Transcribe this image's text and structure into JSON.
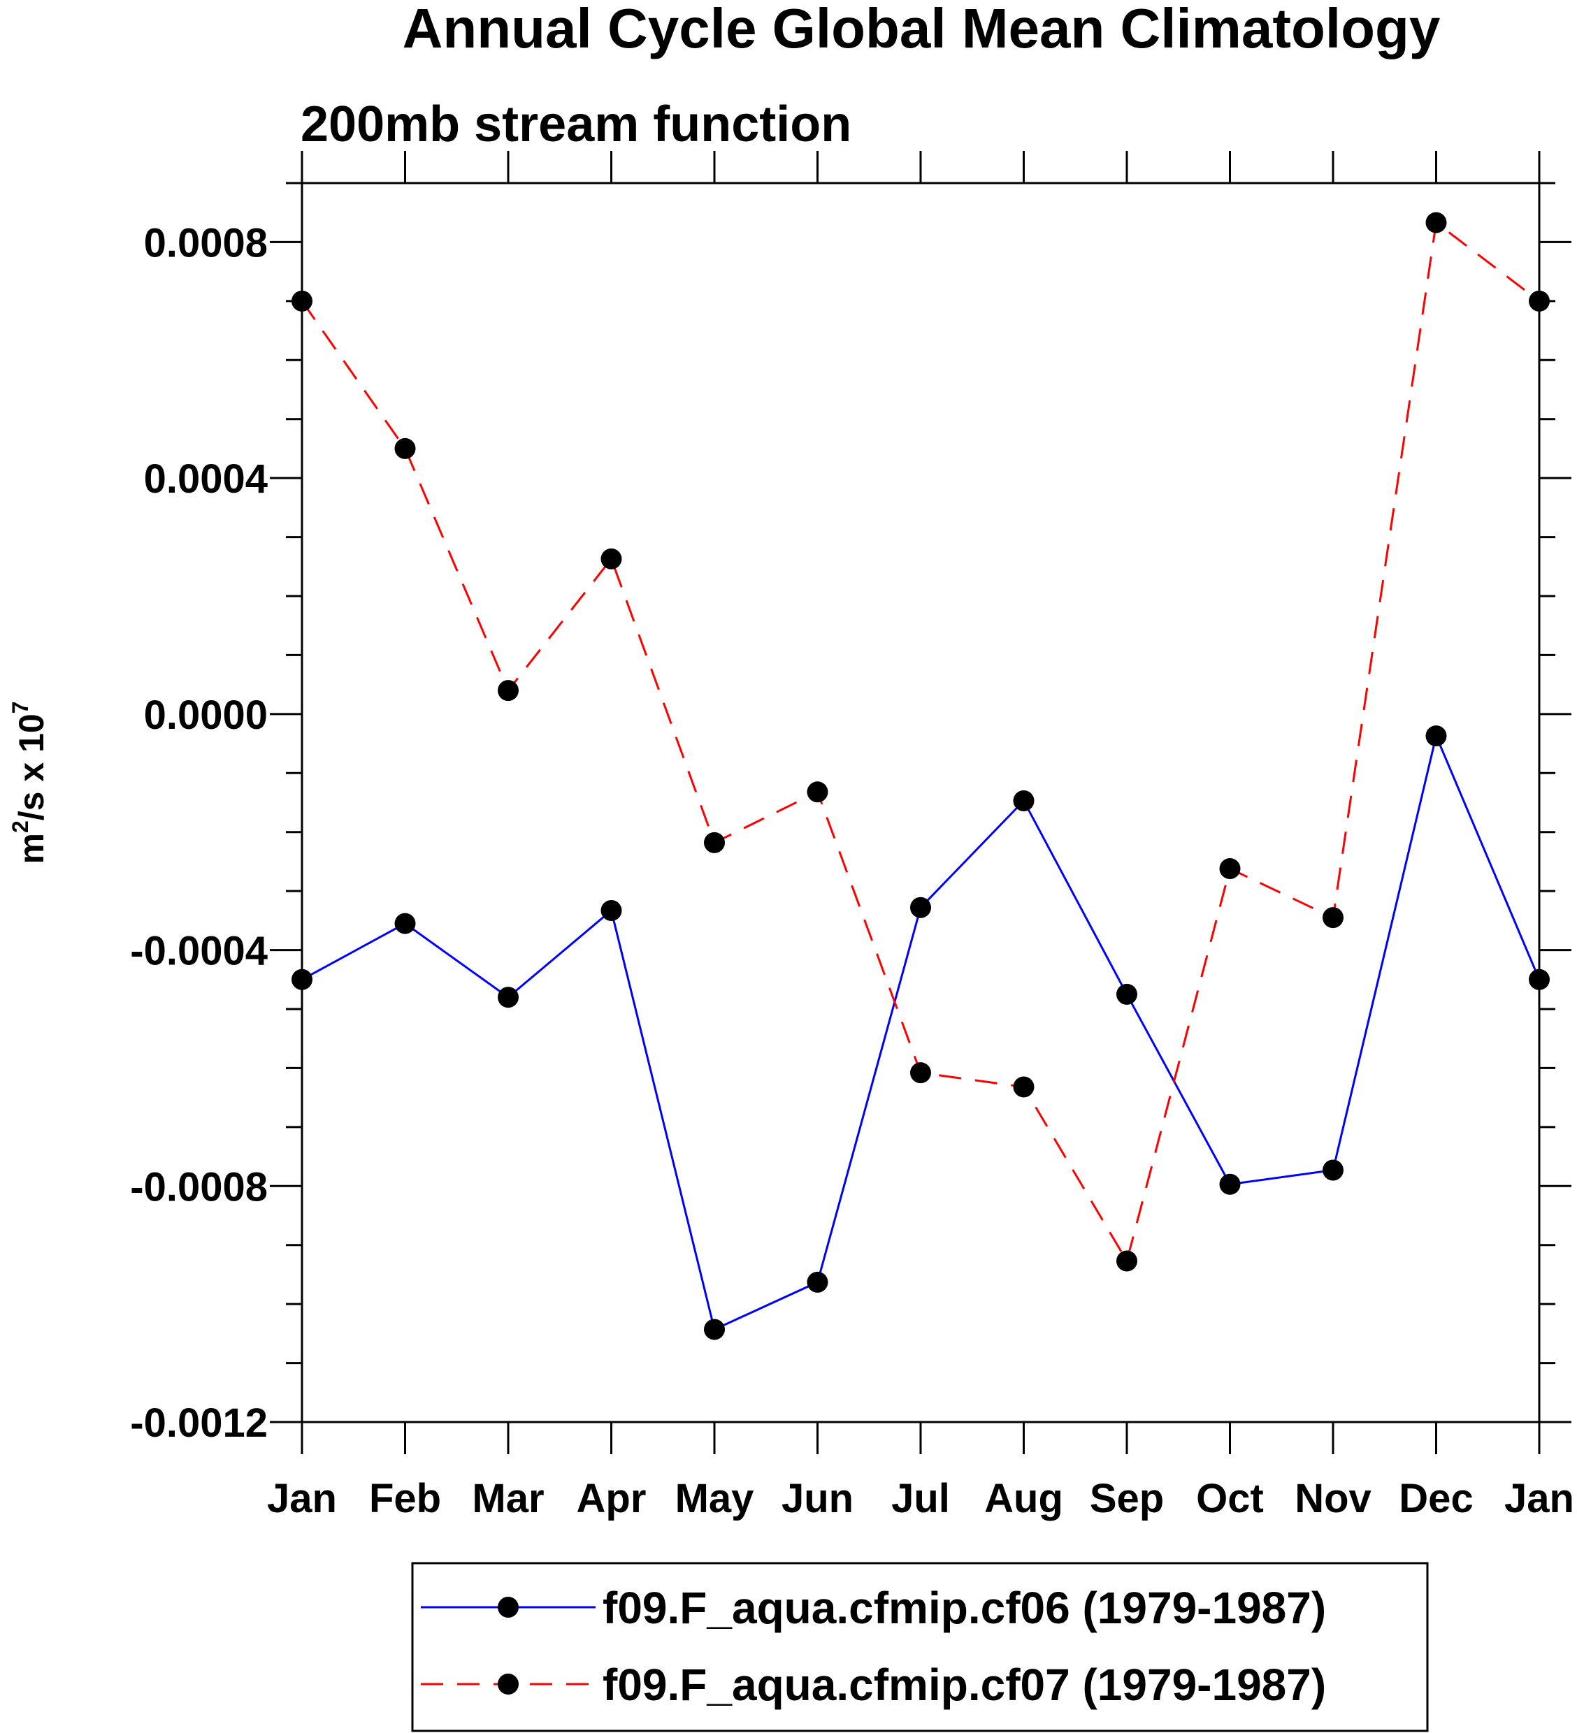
{
  "chart_data": {
    "type": "line",
    "title": "Annual Cycle Global Mean Climatology",
    "subtitle": "200mb stream function",
    "xlabel": "",
    "ylabel": {
      "base": "m",
      "sup1": "2",
      "mid": "/s x 10",
      "sup2": "7"
    },
    "categories": [
      "Jan",
      "Feb",
      "Mar",
      "Apr",
      "May",
      "Jun",
      "Jul",
      "Aug",
      "Sep",
      "Oct",
      "Nov",
      "Dec",
      "Jan"
    ],
    "ylim": [
      -0.0012,
      0.0009
    ],
    "yticks": [
      -0.0012,
      -0.0008,
      -0.0004,
      0.0,
      0.0004,
      0.0008
    ],
    "ytick_labels": [
      "-0.0012",
      "-0.0008",
      "-0.0004",
      "0.0000",
      "0.0004",
      "0.0008"
    ],
    "minor_step": 0.0001,
    "grid": false,
    "legend_position": "bottom",
    "series": [
      {
        "name": "f09.F_aqua.cfmip.cf06 (1979-1987)",
        "color": "#0000ff",
        "dash": "solid",
        "marker": "filled-circle",
        "values": [
          -0.00045,
          -0.000355,
          -0.00048,
          -0.000333,
          -0.001043,
          -0.000963,
          -0.000328,
          -0.000147,
          -0.000475,
          -0.000797,
          -0.000773,
          -3.7e-05,
          -0.00045
        ]
      },
      {
        "name": "f09.F_aqua.cfmip.cf07 (1979-1987)",
        "color": "#ff0000",
        "dash": "dashed",
        "marker": "filled-circle",
        "values": [
          0.0007,
          0.00045,
          4e-05,
          0.000263,
          -0.000218,
          -0.000132,
          -0.000608,
          -0.000632,
          -0.000927,
          -0.000262,
          -0.000345,
          0.000833,
          0.0007
        ]
      }
    ]
  }
}
